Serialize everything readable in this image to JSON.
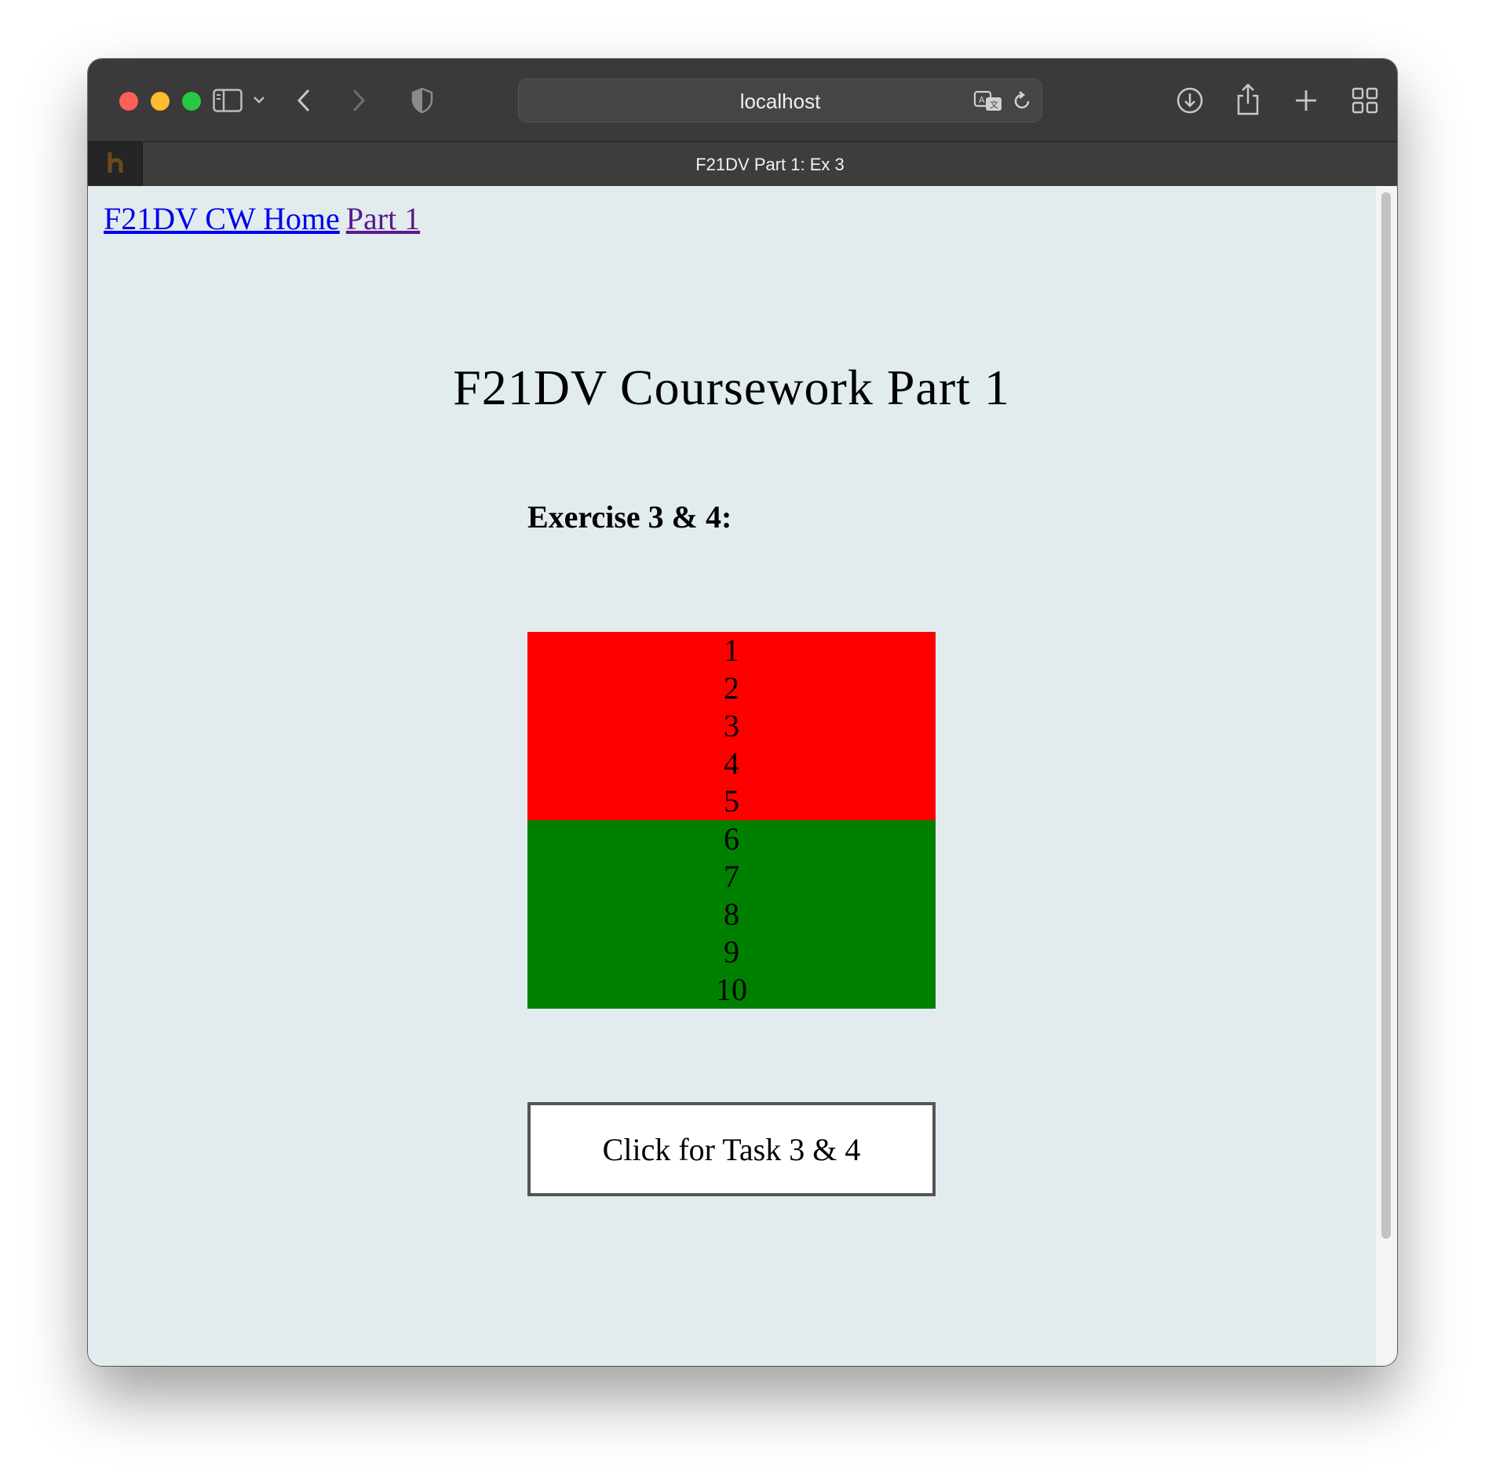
{
  "browser": {
    "url": "localhost",
    "tab_title": "F21DV Part 1: Ex 3"
  },
  "nav": {
    "home_label": "F21DV CW Home",
    "part_label": "Part 1"
  },
  "page": {
    "title": "F21DV Coursework Part 1",
    "exercise_heading": "Exercise 3 & 4:",
    "button_label": "Click for Task 3 & 4"
  },
  "numbers": [
    {
      "label": "1",
      "color": "#ff0000"
    },
    {
      "label": "2",
      "color": "#ff0000"
    },
    {
      "label": "3",
      "color": "#ff0000"
    },
    {
      "label": "4",
      "color": "#ff0000"
    },
    {
      "label": "5",
      "color": "#ff0000"
    },
    {
      "label": "6",
      "color": "#008000"
    },
    {
      "label": "7",
      "color": "#008000"
    },
    {
      "label": "8",
      "color": "#008000"
    },
    {
      "label": "9",
      "color": "#008000"
    },
    {
      "label": "10",
      "color": "#008000"
    }
  ],
  "colors": {
    "page_background": "#e2ecee",
    "link": "#0000ee",
    "visited_link": "#551a8b",
    "red_item": "#ff0000",
    "green_item": "#008000"
  },
  "icons": {
    "toolbar": [
      "sidebar-icon",
      "chevron-down-icon",
      "back-icon",
      "forward-icon",
      "shield-icon",
      "translate-icon",
      "reload-icon",
      "download-icon",
      "share-icon",
      "new-tab-icon",
      "tab-overview-icon"
    ],
    "tab_favicon": "favicon-icon"
  }
}
